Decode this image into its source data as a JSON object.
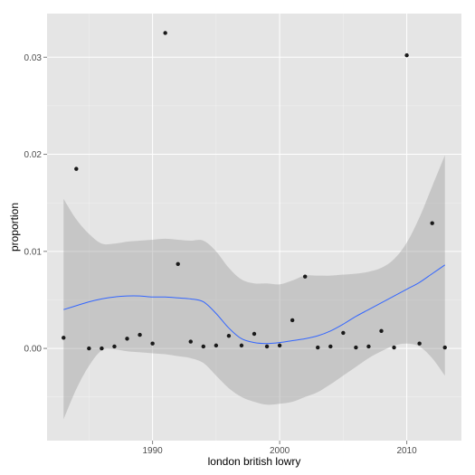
{
  "chart_data": {
    "type": "scatter",
    "xlabel": "london british lowry",
    "ylabel": "proportion",
    "xlim": [
      1981.7,
      2014.3
    ],
    "ylim": [
      -0.0095,
      0.0345
    ],
    "x_ticks": [
      1990,
      2000,
      2010
    ],
    "x_tick_labels": [
      "1990",
      "2000",
      "2010"
    ],
    "y_ticks": [
      0.0,
      0.01,
      0.02,
      0.03
    ],
    "y_tick_labels": [
      "0.00",
      "0.01",
      "0.02",
      "0.03"
    ],
    "grid": true,
    "legend": "none",
    "colors": {
      "panel": "#e5e5e5",
      "grid_major": "#ffffff",
      "grid_minor": "#f2f2f2",
      "points": "#1a1a1a",
      "smooth_line": "#3366ff",
      "ribbon": "#999999"
    },
    "points": [
      {
        "x": 1983,
        "y": 0.0011
      },
      {
        "x": 1984,
        "y": 0.0185
      },
      {
        "x": 1985,
        "y": 0.0
      },
      {
        "x": 1986,
        "y": 0.0
      },
      {
        "x": 1987,
        "y": 0.0002
      },
      {
        "x": 1988,
        "y": 0.001
      },
      {
        "x": 1989,
        "y": 0.0014
      },
      {
        "x": 1990,
        "y": 0.0005
      },
      {
        "x": 1991,
        "y": 0.0325
      },
      {
        "x": 1992,
        "y": 0.0087
      },
      {
        "x": 1993,
        "y": 0.0007
      },
      {
        "x": 1994,
        "y": 0.0002
      },
      {
        "x": 1995,
        "y": 0.0003
      },
      {
        "x": 1996,
        "y": 0.0013
      },
      {
        "x": 1997,
        "y": 0.0003
      },
      {
        "x": 1998,
        "y": 0.0015
      },
      {
        "x": 1999,
        "y": 0.0002
      },
      {
        "x": 2000,
        "y": 0.0003
      },
      {
        "x": 2001,
        "y": 0.0029
      },
      {
        "x": 2002,
        "y": 0.0074
      },
      {
        "x": 2003,
        "y": 0.0001
      },
      {
        "x": 2004,
        "y": 0.0002
      },
      {
        "x": 2005,
        "y": 0.0016
      },
      {
        "x": 2006,
        "y": 0.0001
      },
      {
        "x": 2007,
        "y": 0.0002
      },
      {
        "x": 2008,
        "y": 0.0018
      },
      {
        "x": 2009,
        "y": 0.0001
      },
      {
        "x": 2010,
        "y": 0.0302
      },
      {
        "x": 2011,
        "y": 0.0005
      },
      {
        "x": 2012,
        "y": 0.0129
      },
      {
        "x": 2013,
        "y": 0.0001
      }
    ],
    "smooth": [
      {
        "x": 1983,
        "y": 0.004,
        "lo": -0.0073,
        "hi": 0.0154
      },
      {
        "x": 1984,
        "y": 0.0044,
        "lo": -0.0042,
        "hi": 0.0133
      },
      {
        "x": 1985,
        "y": 0.0048,
        "lo": -0.0018,
        "hi": 0.0118
      },
      {
        "x": 1986,
        "y": 0.0051,
        "lo": -0.0002,
        "hi": 0.0108
      },
      {
        "x": 1987,
        "y": 0.0053,
        "lo": -0.0001,
        "hi": 0.0108
      },
      {
        "x": 1988,
        "y": 0.0054,
        "lo": -0.0003,
        "hi": 0.011
      },
      {
        "x": 1989,
        "y": 0.0054,
        "lo": -0.0004,
        "hi": 0.0111
      },
      {
        "x": 1990,
        "y": 0.0053,
        "lo": -0.0005,
        "hi": 0.0112
      },
      {
        "x": 1991,
        "y": 0.0053,
        "lo": -0.0006,
        "hi": 0.0113
      },
      {
        "x": 1992,
        "y": 0.0052,
        "lo": -0.0008,
        "hi": 0.0112
      },
      {
        "x": 1993,
        "y": 0.0051,
        "lo": -0.001,
        "hi": 0.0111
      },
      {
        "x": 1994,
        "y": 0.0048,
        "lo": -0.0015,
        "hi": 0.0111
      },
      {
        "x": 1995,
        "y": 0.0036,
        "lo": -0.0028,
        "hi": 0.01
      },
      {
        "x": 1996,
        "y": 0.0021,
        "lo": -0.0041,
        "hi": 0.0083
      },
      {
        "x": 1997,
        "y": 0.001,
        "lo": -0.005,
        "hi": 0.0071
      },
      {
        "x": 1998,
        "y": 0.0006,
        "lo": -0.0055,
        "hi": 0.0067
      },
      {
        "x": 1999,
        "y": 0.0005,
        "lo": -0.0058,
        "hi": 0.0067
      },
      {
        "x": 2000,
        "y": 0.0006,
        "lo": -0.0057,
        "hi": 0.0066
      },
      {
        "x": 2001,
        "y": 0.0008,
        "lo": -0.0055,
        "hi": 0.007
      },
      {
        "x": 2002,
        "y": 0.001,
        "lo": -0.005,
        "hi": 0.0075
      },
      {
        "x": 2003,
        "y": 0.0013,
        "lo": -0.0045,
        "hi": 0.0075
      },
      {
        "x": 2004,
        "y": 0.0018,
        "lo": -0.0037,
        "hi": 0.0075
      },
      {
        "x": 2005,
        "y": 0.0025,
        "lo": -0.0028,
        "hi": 0.0076
      },
      {
        "x": 2006,
        "y": 0.0033,
        "lo": -0.0019,
        "hi": 0.0077
      },
      {
        "x": 2007,
        "y": 0.004,
        "lo": -0.001,
        "hi": 0.0079
      },
      {
        "x": 2008,
        "y": 0.0047,
        "lo": -0.0003,
        "hi": 0.0083
      },
      {
        "x": 2009,
        "y": 0.0054,
        "lo": 0.0003,
        "hi": 0.0092
      },
      {
        "x": 2010,
        "y": 0.0061,
        "lo": 0.0005,
        "hi": 0.0109
      },
      {
        "x": 2011,
        "y": 0.0068,
        "lo": 0.0002,
        "hi": 0.0135
      },
      {
        "x": 2012,
        "y": 0.0077,
        "lo": -0.001,
        "hi": 0.0167
      },
      {
        "x": 2013,
        "y": 0.0086,
        "lo": -0.0028,
        "hi": 0.0199
      }
    ]
  }
}
